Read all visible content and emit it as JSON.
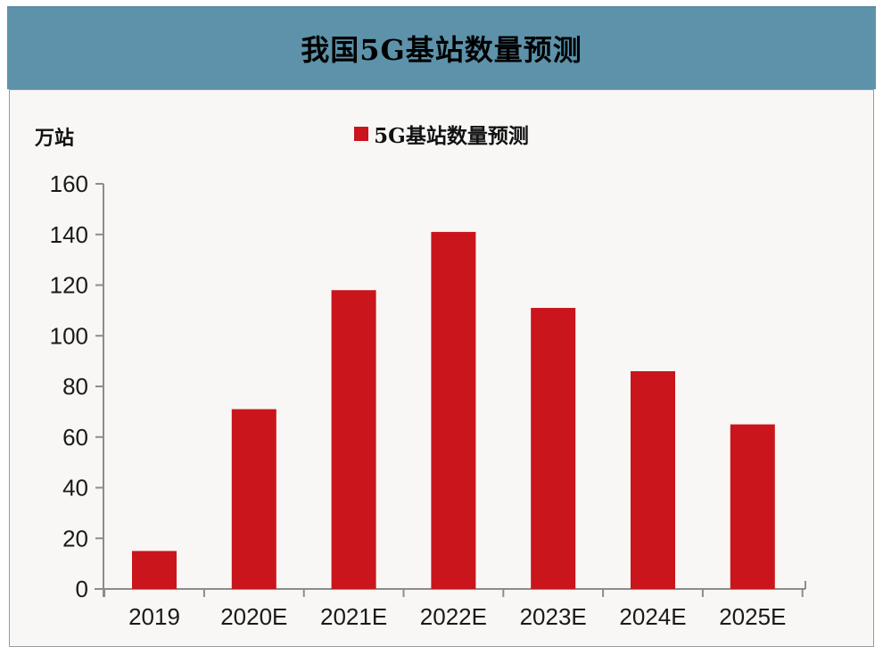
{
  "title": "我国5G基站数量预测",
  "legend": {
    "label": "5G基站数量预测"
  },
  "y_unit_label": "万站",
  "colors": {
    "header_band": "#5d92aa",
    "bar": "#c9151b",
    "axis": "#8c8c8c",
    "panel_background": "#f8f7f5",
    "text": "#1a1a1a"
  },
  "chart_data": {
    "type": "bar",
    "title": "我国5G基站数量预测",
    "categories": [
      "2019",
      "2020E",
      "2021E",
      "2022E",
      "2023E",
      "2024E",
      "2025E"
    ],
    "values": [
      15,
      71,
      118,
      141,
      111,
      86,
      65
    ],
    "series_name": "5G基站数量预测",
    "xlabel": "",
    "ylabel": "万站",
    "ylim": [
      0,
      160
    ],
    "yticks": [
      0,
      20,
      40,
      60,
      80,
      100,
      120,
      140,
      160
    ],
    "bar_color": "#c9151b",
    "legend_position": "top-center",
    "grid": false
  }
}
